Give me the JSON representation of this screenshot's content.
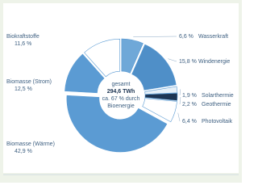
{
  "chart_data": {
    "type": "donut",
    "categories": [
      "Wasserkraft",
      "Windenergie",
      "Solarthermie",
      "Geothermie",
      "Photovoltaik",
      "Biomasse (Wärme)",
      "Biomasse (Strom)",
      "Biokraftstoffe"
    ],
    "values": [
      6.6,
      15.8,
      1.9,
      2.2,
      6.4,
      42.9,
      12.5,
      11.6
    ],
    "value_labels": [
      "6,6 %",
      "15,8 %",
      "1,9 %",
      "2,2 %",
      "6,4 %",
      "42,9 %",
      "12,5 %",
      "11,6 %"
    ],
    "colors": [
      "#6fa8d8",
      "#4f8fc8",
      "#e6f0f8",
      "#1d3553",
      "#ffffff",
      "#5b9bd3",
      "#5b9bd3",
      "#ffffff"
    ],
    "center_text": [
      "gesamt",
      "294,6 TWh",
      "ca. 67 % durch",
      "Bioenergie"
    ]
  }
}
